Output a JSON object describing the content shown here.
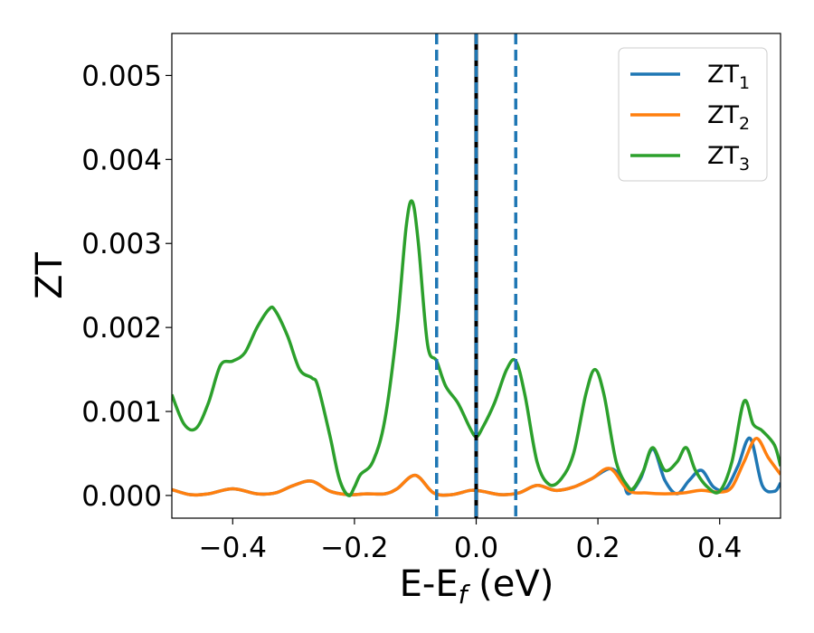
{
  "chart_data": {
    "type": "line",
    "xlabel": "E-E",
    "xlabel_sub": "f",
    "xlabel_unit": " (eV)",
    "ylabel": "ZT",
    "xlim": [
      -0.5,
      0.5
    ],
    "ylim": [
      -0.00027,
      0.0055
    ],
    "xticks": [
      -0.4,
      -0.2,
      0.0,
      0.2,
      0.4
    ],
    "xtick_labels": [
      "−0.4",
      "−0.2",
      "0.0",
      "0.2",
      "0.4"
    ],
    "yticks": [
      0.0,
      0.001,
      0.002,
      0.003,
      0.004,
      0.005
    ],
    "ytick_labels": [
      "0.000",
      "0.001",
      "0.002",
      "0.003",
      "0.004",
      "0.005"
    ],
    "grid": false,
    "legend_position": "top-right",
    "vlines": [
      {
        "x": -0.065,
        "style": "dashed",
        "color": "#1f77b4"
      },
      {
        "x": 0.065,
        "style": "dashed",
        "color": "#1f77b4"
      },
      {
        "x": 0.0,
        "style": "solid",
        "color": "#000000"
      },
      {
        "x": 0.0,
        "style": "dashed",
        "color": "#1f77b4"
      }
    ],
    "series": [
      {
        "name": "ZT",
        "sub": "1",
        "color": "#1f77b4",
        "x": [
          -0.5,
          -0.47,
          -0.44,
          -0.4,
          -0.36,
          -0.33,
          -0.3,
          -0.27,
          -0.24,
          -0.21,
          -0.18,
          -0.15,
          -0.13,
          -0.1,
          -0.07,
          -0.04,
          -0.01,
          0.01,
          0.04,
          0.07,
          0.1,
          0.13,
          0.16,
          0.19,
          0.22,
          0.24,
          0.25,
          0.27,
          0.29,
          0.31,
          0.33,
          0.35,
          0.37,
          0.39,
          0.41,
          0.43,
          0.45,
          0.47,
          0.49,
          0.5
        ],
        "y": [
          7e-05,
          1e-05,
          2e-05,
          8e-05,
          2e-05,
          3e-05,
          0.00012,
          0.00017,
          5e-05,
          1e-05,
          2e-05,
          2e-05,
          8e-05,
          0.00024,
          3e-05,
          1e-05,
          6e-05,
          5e-05,
          1e-05,
          3e-05,
          0.00012,
          6e-05,
          0.0001,
          0.0002,
          0.00032,
          0.0002,
          2e-05,
          0.0002,
          0.00055,
          0.00018,
          2e-05,
          0.00018,
          0.0003,
          0.0001,
          8e-05,
          0.00035,
          0.00068,
          0.00012,
          5e-05,
          0.00015
        ]
      },
      {
        "name": "ZT",
        "sub": "2",
        "color": "#ff7f0e",
        "x": [
          -0.5,
          -0.47,
          -0.44,
          -0.4,
          -0.36,
          -0.33,
          -0.3,
          -0.27,
          -0.24,
          -0.21,
          -0.18,
          -0.15,
          -0.13,
          -0.1,
          -0.07,
          -0.04,
          -0.01,
          0.01,
          0.04,
          0.07,
          0.1,
          0.13,
          0.16,
          0.19,
          0.22,
          0.25,
          0.28,
          0.31,
          0.34,
          0.37,
          0.4,
          0.42,
          0.44,
          0.46,
          0.48,
          0.5
        ],
        "y": [
          7e-05,
          1e-05,
          2e-05,
          8e-05,
          2e-05,
          3e-05,
          0.00012,
          0.00017,
          5e-05,
          1e-05,
          2e-05,
          2e-05,
          8e-05,
          0.00024,
          3e-05,
          1e-05,
          6e-05,
          5e-05,
          1e-05,
          3e-05,
          0.00012,
          6e-05,
          0.0001,
          0.0002,
          0.00032,
          6e-05,
          3e-05,
          2e-05,
          3e-05,
          6e-05,
          4e-05,
          0.0001,
          0.0004,
          0.00068,
          0.00045,
          0.00025
        ]
      },
      {
        "name": "ZT",
        "sub": "3",
        "color": "#2ca02c",
        "x": [
          -0.5,
          -0.48,
          -0.46,
          -0.44,
          -0.42,
          -0.4,
          -0.38,
          -0.36,
          -0.34,
          -0.33,
          -0.31,
          -0.29,
          -0.27,
          -0.26,
          -0.24,
          -0.225,
          -0.21,
          -0.2,
          -0.19,
          -0.17,
          -0.15,
          -0.13,
          -0.115,
          -0.105,
          -0.095,
          -0.08,
          -0.065,
          -0.05,
          -0.03,
          -0.01,
          0.0,
          0.01,
          0.03,
          0.05,
          0.065,
          0.08,
          0.1,
          0.12,
          0.14,
          0.16,
          0.18,
          0.195,
          0.21,
          0.23,
          0.25,
          0.26,
          0.275,
          0.29,
          0.31,
          0.33,
          0.345,
          0.36,
          0.38,
          0.4,
          0.42,
          0.44,
          0.455,
          0.47,
          0.49,
          0.5
        ],
        "y": [
          0.0012,
          0.00085,
          0.0008,
          0.0011,
          0.00155,
          0.0016,
          0.0017,
          0.002,
          0.00222,
          0.0022,
          0.0019,
          0.0015,
          0.0014,
          0.0013,
          0.0007,
          0.0002,
          0.0,
          0.0001,
          0.00025,
          0.0004,
          0.0009,
          0.002,
          0.0032,
          0.0035,
          0.003,
          0.0018,
          0.0016,
          0.0013,
          0.0011,
          0.0008,
          0.0007,
          0.0008,
          0.0011,
          0.0015,
          0.0016,
          0.0012,
          0.0004,
          0.00013,
          0.0002,
          0.0005,
          0.0012,
          0.0015,
          0.0012,
          0.0004,
          0.0001,
          0.0001,
          0.0003,
          0.00057,
          0.0003,
          0.0004,
          0.00057,
          0.0003,
          0.0001,
          5e-05,
          0.0004,
          0.00112,
          0.00085,
          0.00077,
          0.0006,
          0.00035
        ]
      }
    ]
  }
}
